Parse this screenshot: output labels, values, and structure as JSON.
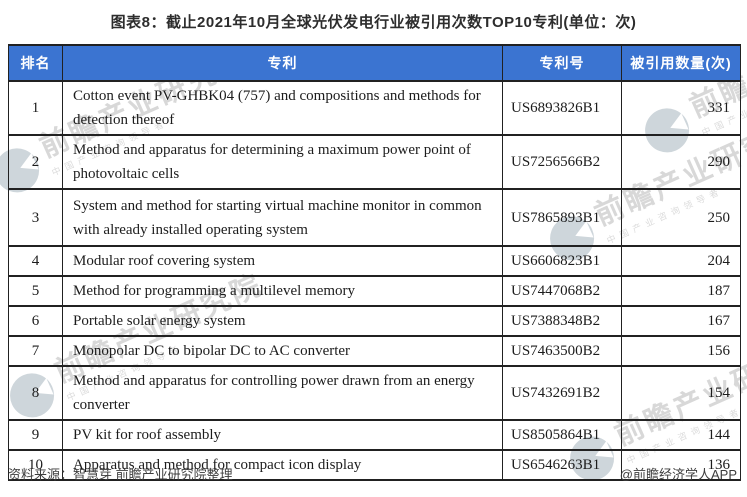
{
  "title": "图表8：截止2021年10月全球光伏发电行业被引用次数TOP10专利(单位：次)",
  "chart_data": {
    "type": "table",
    "title": "截止2021年10月全球光伏发电行业被引用次数TOP10专利",
    "unit": "次",
    "columns": [
      "排名",
      "专利",
      "专利号",
      "被引用数量(次)"
    ],
    "rows": [
      [
        "1",
        "Cotton event PV-GHBK04 (757) and compositions and methods for detection thereof",
        "US6893826B1",
        "331"
      ],
      [
        "2",
        "Method and apparatus for determining a maximum power point of photovoltaic cells",
        "US7256566B2",
        "290"
      ],
      [
        "3",
        "System and method for starting virtual machine monitor in common with already installed operating system",
        "US7865893B1",
        "250"
      ],
      [
        "4",
        "Modular roof covering system",
        "US6606823B1",
        "204"
      ],
      [
        "5",
        "Method for programming a multilevel memory",
        "US7447068B2",
        "187"
      ],
      [
        "6",
        "Portable solar energy system",
        "US7388348B2",
        "167"
      ],
      [
        "7",
        "Monopolar DC to bipolar DC to AC converter",
        "US7463500B2",
        "156"
      ],
      [
        "8",
        "Method and apparatus for controlling power drawn from an energy converter",
        "US7432691B2",
        "154"
      ],
      [
        "9",
        "PV kit for roof assembly",
        "US8505864B1",
        "144"
      ],
      [
        "10",
        "Apparatus and method for compact icon display",
        "US6546263B1",
        "136"
      ]
    ]
  },
  "footer": {
    "source": "资料来源：智慧芽 前瞻产业研究院整理",
    "credit": "@前瞻经济学人APP"
  },
  "watermark": {
    "text": "前瞻产业研究院",
    "subtext": "中国产业咨询领导者"
  },
  "colors": {
    "header_bg": "#3B74D1",
    "header_text": "#FFFFFF",
    "border": "#212121",
    "watermark": "#D2D2D2"
  }
}
